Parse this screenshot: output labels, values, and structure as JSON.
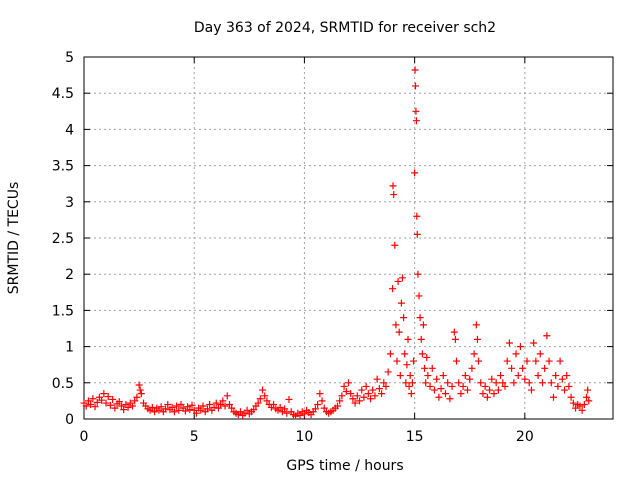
{
  "chart_data": {
    "type": "scatter",
    "title": "Day 363 of 2024, SRMTID for receiver sch2",
    "xlabel": "GPS time / hours",
    "ylabel": "SRMTID / TECUs",
    "xlim": [
      0,
      24
    ],
    "ylim": [
      0,
      5
    ],
    "xticks": [
      0,
      5,
      10,
      15,
      20
    ],
    "yticks": [
      0,
      0.5,
      1,
      1.5,
      2,
      2.5,
      3,
      3.5,
      4,
      4.5,
      5
    ],
    "xtick_labels": [
      "0",
      "5",
      "10",
      "15",
      "20"
    ],
    "ytick_labels": [
      "0",
      "0.5",
      "1",
      "1.5",
      "2",
      "2.5",
      "3",
      "3.5",
      "4",
      "4.5",
      "5"
    ],
    "grid": true,
    "marker": "+",
    "marker_color": "#ff0000",
    "series": [
      {
        "name": "sch2",
        "points": [
          [
            0.0,
            0.22
          ],
          [
            0.1,
            0.18
          ],
          [
            0.2,
            0.25
          ],
          [
            0.3,
            0.2
          ],
          [
            0.4,
            0.28
          ],
          [
            0.5,
            0.17
          ],
          [
            0.6,
            0.23
          ],
          [
            0.7,
            0.3
          ],
          [
            0.8,
            0.26
          ],
          [
            0.9,
            0.35
          ],
          [
            1.0,
            0.22
          ],
          [
            1.1,
            0.31
          ],
          [
            1.2,
            0.19
          ],
          [
            1.3,
            0.27
          ],
          [
            1.4,
            0.15
          ],
          [
            1.5,
            0.21
          ],
          [
            1.6,
            0.24
          ],
          [
            1.7,
            0.18
          ],
          [
            1.8,
            0.13
          ],
          [
            1.9,
            0.2
          ],
          [
            2.0,
            0.16
          ],
          [
            2.1,
            0.22
          ],
          [
            2.2,
            0.18
          ],
          [
            2.3,
            0.25
          ],
          [
            2.4,
            0.3
          ],
          [
            2.5,
            0.47
          ],
          [
            2.55,
            0.4
          ],
          [
            2.6,
            0.35
          ],
          [
            2.7,
            0.22
          ],
          [
            2.8,
            0.18
          ],
          [
            2.9,
            0.14
          ],
          [
            3.0,
            0.12
          ],
          [
            3.1,
            0.16
          ],
          [
            3.2,
            0.1
          ],
          [
            3.3,
            0.15
          ],
          [
            3.4,
            0.12
          ],
          [
            3.5,
            0.17
          ],
          [
            3.6,
            0.1
          ],
          [
            3.7,
            0.14
          ],
          [
            3.8,
            0.2
          ],
          [
            3.9,
            0.13
          ],
          [
            4.0,
            0.16
          ],
          [
            4.1,
            0.1
          ],
          [
            4.2,
            0.18
          ],
          [
            4.3,
            0.12
          ],
          [
            4.4,
            0.2
          ],
          [
            4.5,
            0.15
          ],
          [
            4.6,
            0.11
          ],
          [
            4.7,
            0.17
          ],
          [
            4.8,
            0.13
          ],
          [
            4.9,
            0.19
          ],
          [
            5.0,
            0.12
          ],
          [
            5.1,
            0.08
          ],
          [
            5.2,
            0.15
          ],
          [
            5.3,
            0.12
          ],
          [
            5.4,
            0.18
          ],
          [
            5.5,
            0.1
          ],
          [
            5.6,
            0.14
          ],
          [
            5.7,
            0.2
          ],
          [
            5.8,
            0.12
          ],
          [
            5.9,
            0.16
          ],
          [
            6.0,
            0.22
          ],
          [
            6.1,
            0.15
          ],
          [
            6.2,
            0.2
          ],
          [
            6.3,
            0.25
          ],
          [
            6.4,
            0.18
          ],
          [
            6.5,
            0.32
          ],
          [
            6.6,
            0.2
          ],
          [
            6.7,
            0.15
          ],
          [
            6.8,
            0.1
          ],
          [
            6.9,
            0.08
          ],
          [
            7.0,
            0.06
          ],
          [
            7.1,
            0.1
          ],
          [
            7.2,
            0.05
          ],
          [
            7.3,
            0.08
          ],
          [
            7.4,
            0.12
          ],
          [
            7.5,
            0.07
          ],
          [
            7.6,
            0.1
          ],
          [
            7.7,
            0.13
          ],
          [
            7.8,
            0.18
          ],
          [
            7.9,
            0.22
          ],
          [
            8.0,
            0.28
          ],
          [
            8.1,
            0.4
          ],
          [
            8.2,
            0.32
          ],
          [
            8.3,
            0.25
          ],
          [
            8.4,
            0.2
          ],
          [
            8.5,
            0.16
          ],
          [
            8.6,
            0.2
          ],
          [
            8.7,
            0.14
          ],
          [
            8.8,
            0.12
          ],
          [
            8.9,
            0.16
          ],
          [
            9.0,
            0.1
          ],
          [
            9.1,
            0.14
          ],
          [
            9.2,
            0.08
          ],
          [
            9.3,
            0.27
          ],
          [
            9.4,
            0.1
          ],
          [
            9.5,
            0.06
          ],
          [
            9.6,
            0.04
          ],
          [
            9.7,
            0.08
          ],
          [
            9.8,
            0.05
          ],
          [
            9.9,
            0.1
          ],
          [
            10.0,
            0.07
          ],
          [
            10.1,
            0.12
          ],
          [
            10.2,
            0.09
          ],
          [
            10.3,
            0.06
          ],
          [
            10.4,
            0.1
          ],
          [
            10.5,
            0.14
          ],
          [
            10.6,
            0.2
          ],
          [
            10.7,
            0.35
          ],
          [
            10.8,
            0.25
          ],
          [
            10.9,
            0.15
          ],
          [
            11.0,
            0.1
          ],
          [
            11.1,
            0.08
          ],
          [
            11.2,
            0.1
          ],
          [
            11.3,
            0.12
          ],
          [
            11.4,
            0.15
          ],
          [
            11.5,
            0.18
          ],
          [
            11.6,
            0.25
          ],
          [
            11.7,
            0.32
          ],
          [
            11.8,
            0.45
          ],
          [
            11.9,
            0.38
          ],
          [
            12.0,
            0.5
          ],
          [
            12.1,
            0.35
          ],
          [
            12.2,
            0.28
          ],
          [
            12.3,
            0.22
          ],
          [
            12.4,
            0.32
          ],
          [
            12.5,
            0.25
          ],
          [
            12.6,
            0.4
          ],
          [
            12.7,
            0.3
          ],
          [
            12.8,
            0.45
          ],
          [
            12.9,
            0.35
          ],
          [
            13.0,
            0.28
          ],
          [
            13.1,
            0.4
          ],
          [
            13.2,
            0.32
          ],
          [
            13.3,
            0.55
          ],
          [
            13.4,
            0.42
          ],
          [
            13.5,
            0.35
          ],
          [
            13.6,
            0.5
          ],
          [
            13.7,
            0.45
          ],
          [
            13.8,
            0.65
          ],
          [
            13.9,
            0.9
          ],
          [
            14.0,
            1.8
          ],
          [
            14.02,
            3.22
          ],
          [
            14.05,
            3.1
          ],
          [
            14.1,
            2.4
          ],
          [
            14.15,
            1.3
          ],
          [
            14.2,
            0.8
          ],
          [
            14.25,
            1.9
          ],
          [
            14.3,
            1.2
          ],
          [
            14.35,
            0.6
          ],
          [
            14.4,
            1.6
          ],
          [
            14.45,
            1.95
          ],
          [
            14.5,
            1.4
          ],
          [
            14.55,
            0.9
          ],
          [
            14.6,
            0.5
          ],
          [
            14.65,
            0.75
          ],
          [
            14.7,
            1.1
          ],
          [
            14.75,
            0.45
          ],
          [
            14.8,
            0.6
          ],
          [
            14.85,
            0.35
          ],
          [
            14.9,
            0.5
          ],
          [
            14.95,
            0.8
          ],
          [
            15.0,
            3.4
          ],
          [
            15.02,
            4.82
          ],
          [
            15.04,
            4.6
          ],
          [
            15.06,
            4.25
          ],
          [
            15.08,
            4.12
          ],
          [
            15.1,
            2.8
          ],
          [
            15.12,
            2.55
          ],
          [
            15.15,
            2.0
          ],
          [
            15.2,
            1.7
          ],
          [
            15.25,
            1.4
          ],
          [
            15.3,
            1.1
          ],
          [
            15.35,
            0.9
          ],
          [
            15.4,
            1.3
          ],
          [
            15.45,
            0.7
          ],
          [
            15.5,
            0.5
          ],
          [
            15.55,
            0.85
          ],
          [
            15.6,
            0.6
          ],
          [
            15.7,
            0.45
          ],
          [
            15.8,
            0.7
          ],
          [
            15.9,
            0.4
          ],
          [
            16.0,
            0.55
          ],
          [
            16.1,
            0.3
          ],
          [
            16.2,
            0.42
          ],
          [
            16.3,
            0.6
          ],
          [
            16.4,
            0.35
          ],
          [
            16.5,
            0.5
          ],
          [
            16.6,
            0.28
          ],
          [
            16.7,
            0.45
          ],
          [
            16.8,
            1.2
          ],
          [
            16.85,
            1.1
          ],
          [
            16.9,
            0.8
          ],
          [
            17.0,
            0.5
          ],
          [
            17.1,
            0.35
          ],
          [
            17.2,
            0.45
          ],
          [
            17.3,
            0.6
          ],
          [
            17.4,
            0.4
          ],
          [
            17.5,
            0.55
          ],
          [
            17.6,
            0.7
          ],
          [
            17.7,
            0.9
          ],
          [
            17.8,
            1.3
          ],
          [
            17.85,
            1.1
          ],
          [
            17.9,
            0.8
          ],
          [
            18.0,
            0.5
          ],
          [
            18.1,
            0.35
          ],
          [
            18.2,
            0.45
          ],
          [
            18.3,
            0.3
          ],
          [
            18.4,
            0.4
          ],
          [
            18.5,
            0.55
          ],
          [
            18.6,
            0.35
          ],
          [
            18.7,
            0.5
          ],
          [
            18.8,
            0.4
          ],
          [
            18.9,
            0.6
          ],
          [
            19.0,
            0.5
          ],
          [
            19.1,
            0.45
          ],
          [
            19.2,
            0.8
          ],
          [
            19.3,
            1.05
          ],
          [
            19.4,
            0.7
          ],
          [
            19.5,
            0.5
          ],
          [
            19.6,
            0.9
          ],
          [
            19.7,
            0.6
          ],
          [
            19.8,
            1.0
          ],
          [
            19.9,
            0.7
          ],
          [
            20.0,
            0.55
          ],
          [
            20.1,
            0.8
          ],
          [
            20.2,
            0.5
          ],
          [
            20.3,
            0.4
          ],
          [
            20.4,
            1.05
          ],
          [
            20.5,
            0.8
          ],
          [
            20.6,
            0.6
          ],
          [
            20.7,
            0.9
          ],
          [
            20.8,
            0.5
          ],
          [
            20.9,
            0.7
          ],
          [
            21.0,
            1.15
          ],
          [
            21.1,
            0.8
          ],
          [
            21.2,
            0.5
          ],
          [
            21.3,
            0.3
          ],
          [
            21.4,
            0.6
          ],
          [
            21.5,
            0.45
          ],
          [
            21.6,
            0.8
          ],
          [
            21.7,
            0.55
          ],
          [
            21.8,
            0.4
          ],
          [
            21.9,
            0.6
          ],
          [
            22.0,
            0.45
          ],
          [
            22.1,
            0.3
          ],
          [
            22.2,
            0.22
          ],
          [
            22.3,
            0.15
          ],
          [
            22.4,
            0.2
          ],
          [
            22.5,
            0.18
          ],
          [
            22.6,
            0.12
          ],
          [
            22.7,
            0.2
          ],
          [
            22.8,
            0.3
          ],
          [
            22.85,
            0.4
          ],
          [
            22.9,
            0.25
          ]
        ]
      }
    ]
  }
}
